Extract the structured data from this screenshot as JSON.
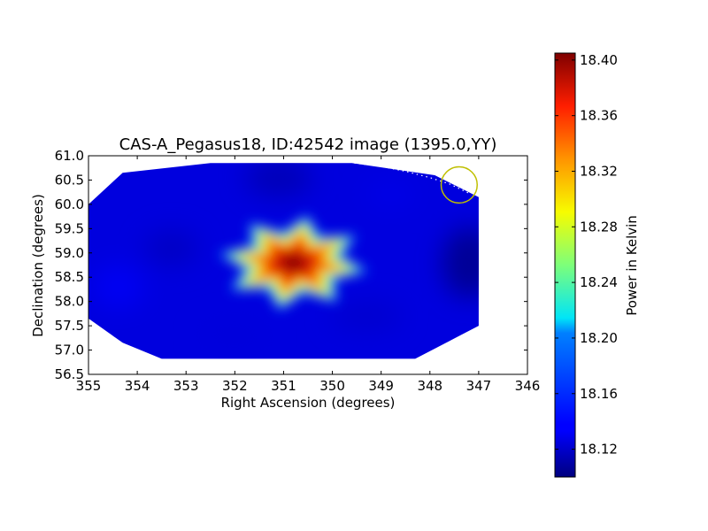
{
  "chart_data": {
    "type": "heatmap",
    "title": "CAS-A_Pegasus18, ID:42542 image (1395.0,YY)",
    "xlabel": "Right Ascension (degrees)",
    "ylabel": "Declination (degrees)",
    "xlim": [
      355,
      346
    ],
    "ylim": [
      56.5,
      61.0
    ],
    "x_ticks": [
      "355",
      "354",
      "353",
      "352",
      "351",
      "350",
      "349",
      "348",
      "347",
      "346"
    ],
    "y_ticks": [
      "56.5",
      "57.0",
      "57.5",
      "58.0",
      "58.5",
      "59.0",
      "59.5",
      "60.0",
      "60.5",
      "61.0"
    ],
    "colorbar": {
      "label": "Power in Kelvin",
      "range": [
        18.1,
        18.405
      ],
      "ticks": [
        "18.12",
        "18.16",
        "18.20",
        "18.24",
        "18.28",
        "18.32",
        "18.36",
        "18.40"
      ],
      "colormap": "jet"
    },
    "image_footprint_corners": [
      [
        355.0,
        60.0
      ],
      [
        354.3,
        60.65
      ],
      [
        352.5,
        60.85
      ],
      [
        349.6,
        60.85
      ],
      [
        347.9,
        60.6
      ],
      [
        347.0,
        60.15
      ],
      [
        347.0,
        57.5
      ],
      [
        348.3,
        56.82
      ],
      [
        353.5,
        56.82
      ],
      [
        354.3,
        57.15
      ],
      [
        355.0,
        57.65
      ]
    ],
    "background_level": 18.125,
    "source": {
      "ra": 350.8,
      "dec": 58.8,
      "peak": 18.4,
      "shape": "8-point star",
      "points": 8
    },
    "marker_circle": {
      "ra": 347.4,
      "dec": 60.4,
      "radius_deg": 0.37,
      "color": "#bfbf00"
    },
    "dotted_path": [
      [
        349.55,
        60.85
      ],
      [
        349.0,
        60.78
      ],
      [
        348.5,
        60.68
      ],
      [
        348.0,
        60.55
      ],
      [
        347.6,
        60.42
      ],
      [
        347.2,
        60.23
      ]
    ]
  }
}
